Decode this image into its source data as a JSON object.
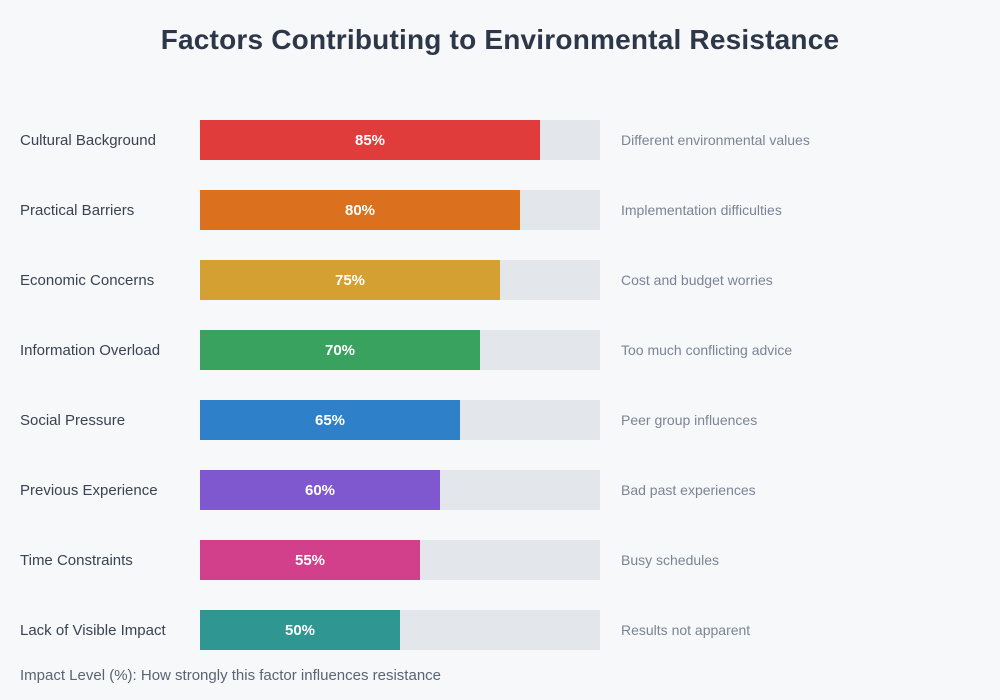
{
  "title": "Factors Contributing to Environmental Resistance",
  "note": "Impact Level (%): How strongly this factor influences resistance",
  "colors": {
    "background": "#f6f8fa",
    "track": "#e3e7ec",
    "title_text": "#2d3748",
    "label_text": "#3b4252",
    "description_text": "#7b8496",
    "note_text": "#5a6474",
    "bar_value_text": "#ffffff"
  },
  "chart_data": {
    "type": "bar",
    "orientation": "horizontal",
    "title": "Factors Contributing to Environmental Resistance",
    "xlabel": "Impact Level (%)",
    "note": "Impact Level (%): How strongly this factor influences resistance",
    "xlim": [
      0,
      100
    ],
    "grid": false,
    "legend": "none",
    "categories": [
      "Cultural Background",
      "Practical Barriers",
      "Economic Concerns",
      "Information Overload",
      "Social Pressure",
      "Previous Experience",
      "Time Constraints",
      "Lack of Visible Impact"
    ],
    "values": [
      85,
      80,
      75,
      70,
      65,
      60,
      55,
      50
    ],
    "value_labels": [
      "85%",
      "80%",
      "75%",
      "70%",
      "65%",
      "60%",
      "55%",
      "50%"
    ],
    "descriptions": [
      "Different environmental values",
      "Implementation difficulties",
      "Cost and budget worries",
      "Too much conflicting advice",
      "Peer group influences",
      "Bad past experiences",
      "Busy schedules",
      "Results not apparent"
    ],
    "bar_colors": [
      "#e03c3c",
      "#db711f",
      "#d5a032",
      "#38a25e",
      "#2e80c8",
      "#7f58cf",
      "#d23f8a",
      "#2f9691"
    ]
  }
}
